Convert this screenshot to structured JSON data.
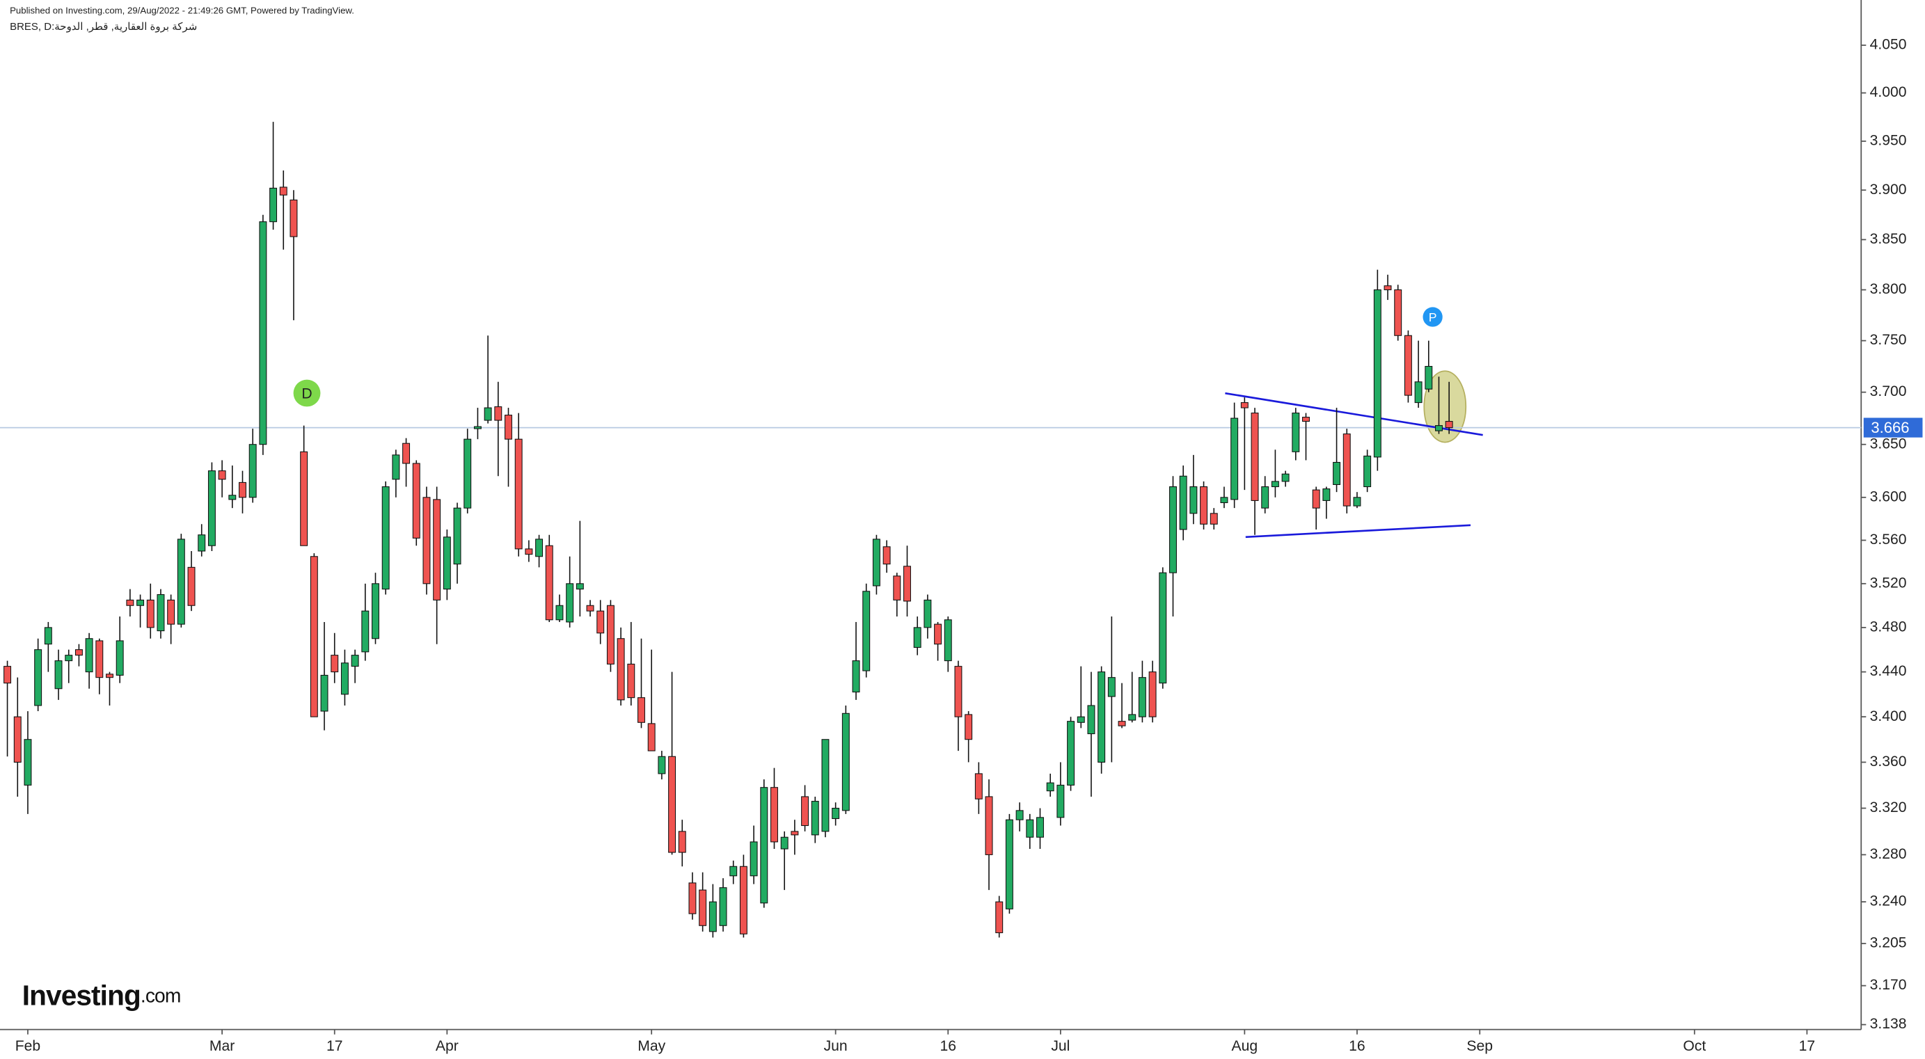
{
  "chart_data": {
    "type": "candlestick",
    "published": "Published on Investing.com, 29/Aug/2022 - 21:49:26 GMT, Powered by TradingView.",
    "symbol": "شركة بروة العقارية, قطر, الدوحة:BRES, D",
    "logo": {
      "brand": "Investing",
      "suffix": ".com"
    },
    "markers": [
      {
        "text": "D",
        "color": "#7ed84a"
      },
      {
        "text": "P",
        "color": "#2196f3"
      }
    ],
    "up_color": "#22ab62",
    "down_color": "#ef5350",
    "line_color": "#1a1adb",
    "price_line_color": "#b7c9e2",
    "price_label_color": "#2f6bd8",
    "log_y": true,
    "xlim": [
      -0.72,
      181.3
    ],
    "ylim": [
      3.134,
      4.098
    ],
    "yticks": [
      {
        "value": 4.05,
        "label": "4.050"
      },
      {
        "value": 4.0,
        "label": "4.000"
      },
      {
        "value": 3.95,
        "label": "3.950"
      },
      {
        "value": 3.9,
        "label": "3.900"
      },
      {
        "value": 3.85,
        "label": "3.850"
      },
      {
        "value": 3.8,
        "label": "3.800"
      },
      {
        "value": 3.75,
        "label": "3.750"
      },
      {
        "value": 3.7,
        "label": "3.700"
      },
      {
        "value": 3.65,
        "label": "3.650"
      },
      {
        "value": 3.6,
        "label": "3.600"
      },
      {
        "value": 3.56,
        "label": "3.560"
      },
      {
        "value": 3.52,
        "label": "3.520"
      },
      {
        "value": 3.48,
        "label": "3.480"
      },
      {
        "value": 3.44,
        "label": "3.440"
      },
      {
        "value": 3.4,
        "label": "3.400"
      },
      {
        "value": 3.36,
        "label": "3.360"
      },
      {
        "value": 3.32,
        "label": "3.320"
      },
      {
        "value": 3.28,
        "label": "3.280"
      },
      {
        "value": 3.24,
        "label": "3.240"
      },
      3.205,
      {
        "value": 3.17,
        "label": "3.170"
      },
      3.138
    ],
    "xticks": [
      {
        "value": 2,
        "label": "Feb"
      },
      {
        "value": 21,
        "label": "Mar"
      },
      {
        "value": 32,
        "label": "17"
      },
      {
        "value": 43,
        "label": "Apr"
      },
      {
        "value": 63,
        "label": "May"
      },
      {
        "value": 81,
        "label": "Jun"
      },
      {
        "value": 92,
        "label": "16"
      },
      {
        "value": 103,
        "label": "Jul"
      },
      {
        "value": 121,
        "label": "Aug"
      },
      {
        "value": 132,
        "label": "16"
      },
      {
        "value": 144,
        "label": "Sep"
      },
      {
        "value": 165,
        "label": "Oct"
      },
      {
        "value": 176,
        "label": "17"
      }
    ],
    "last_price": 3.666,
    "trendlines": [
      {
        "x": [
          119.1,
          144.3
        ],
        "y": [
          3.699,
          3.659
        ]
      },
      {
        "x": [
          121.1,
          143.1
        ],
        "y": [
          3.563,
          3.574
        ]
      }
    ],
    "open": [
      3.445,
      3.4,
      3.34,
      3.41,
      3.465,
      3.425,
      3.45,
      3.46,
      3.44,
      3.468,
      3.438,
      3.437,
      3.505,
      3.5,
      3.505,
      3.477,
      3.505,
      3.483,
      3.535,
      3.55,
      3.555,
      3.625,
      3.598,
      3.614,
      3.6,
      3.65,
      3.868,
      3.903,
      3.89,
      3.643,
      3.545,
      3.405,
      3.455,
      3.42,
      3.445,
      3.458,
      3.47,
      3.515,
      3.617,
      3.651,
      3.632,
      3.6,
      3.598,
      3.515,
      3.538,
      3.59,
      3.665,
      3.673,
      3.686,
      3.678,
      3.655,
      3.552,
      3.545,
      3.555,
      3.487,
      3.485,
      3.515,
      3.5,
      3.495,
      3.5,
      3.47,
      3.447,
      3.417,
      3.394,
      3.35,
      3.365,
      3.3,
      3.256,
      3.25,
      3.215,
      3.22,
      3.262,
      3.27,
      3.262,
      3.239,
      3.338,
      3.285,
      3.3,
      3.33,
      3.297,
      3.3,
      3.311,
      3.318,
      3.422,
      3.441,
      3.518,
      3.554,
      3.527,
      3.536,
      3.462,
      3.48,
      3.483,
      3.45,
      3.445,
      3.402,
      3.35,
      3.33,
      3.24,
      3.234,
      3.31,
      3.295,
      3.295,
      3.335,
      3.312,
      3.34,
      3.395,
      3.385,
      3.36,
      3.418,
      3.396,
      3.397,
      3.4,
      3.44,
      3.43,
      3.53,
      3.57,
      3.585,
      3.61,
      3.585,
      3.595,
      3.598,
      3.69,
      3.68,
      3.59,
      3.61,
      3.615,
      3.643,
      3.676,
      3.607,
      3.597,
      3.612,
      3.66,
      3.592,
      3.61,
      3.638,
      3.804,
      3.8,
      3.755,
      3.69,
      3.703,
      3.663,
      3.672
    ],
    "high": [
      3.45,
      3.435,
      3.405,
      3.47,
      3.485,
      3.46,
      3.46,
      3.465,
      3.475,
      3.47,
      3.44,
      3.49,
      3.515,
      3.51,
      3.52,
      3.515,
      3.51,
      3.566,
      3.55,
      3.575,
      3.633,
      3.635,
      3.63,
      3.625,
      3.665,
      3.875,
      3.97,
      3.92,
      3.9,
      3.668,
      3.548,
      3.485,
      3.475,
      3.46,
      3.46,
      3.52,
      3.53,
      3.615,
      3.645,
      3.656,
      3.635,
      3.61,
      3.61,
      3.57,
      3.595,
      3.665,
      3.685,
      3.755,
      3.71,
      3.685,
      3.68,
      3.56,
      3.565,
      3.565,
      3.51,
      3.545,
      3.578,
      3.505,
      3.505,
      3.505,
      3.48,
      3.485,
      3.47,
      3.46,
      3.37,
      3.44,
      3.31,
      3.265,
      3.265,
      3.255,
      3.26,
      3.275,
      3.28,
      3.305,
      3.345,
      3.355,
      3.3,
      3.31,
      3.34,
      3.33,
      3.38,
      3.325,
      3.41,
      3.485,
      3.52,
      3.565,
      3.56,
      3.53,
      3.555,
      3.49,
      3.51,
      3.485,
      3.49,
      3.45,
      3.405,
      3.36,
      3.345,
      3.245,
      3.315,
      3.325,
      3.315,
      3.32,
      3.35,
      3.36,
      3.4,
      3.445,
      3.44,
      3.445,
      3.49,
      3.43,
      3.44,
      3.45,
      3.45,
      3.535,
      3.62,
      3.63,
      3.64,
      3.615,
      3.59,
      3.61,
      3.69,
      3.695,
      3.685,
      3.62,
      3.645,
      3.625,
      3.685,
      3.68,
      3.61,
      3.61,
      3.685,
      3.665,
      3.605,
      3.645,
      3.82,
      3.815,
      3.805,
      3.76,
      3.75,
      3.75,
      3.715,
      3.71
    ],
    "low": [
      3.365,
      3.33,
      3.315,
      3.405,
      3.44,
      3.415,
      3.43,
      3.445,
      3.425,
      3.42,
      3.41,
      3.43,
      3.49,
      3.48,
      3.47,
      3.47,
      3.465,
      3.48,
      3.495,
      3.545,
      3.55,
      3.6,
      3.59,
      3.585,
      3.595,
      3.64,
      3.86,
      3.84,
      3.77,
      3.555,
      3.4,
      3.388,
      3.43,
      3.41,
      3.43,
      3.45,
      3.465,
      3.51,
      3.6,
      3.61,
      3.555,
      3.51,
      3.465,
      3.505,
      3.52,
      3.585,
      3.655,
      3.67,
      3.62,
      3.61,
      3.545,
      3.54,
      3.535,
      3.485,
      3.485,
      3.48,
      3.49,
      3.49,
      3.465,
      3.44,
      3.41,
      3.41,
      3.39,
      3.37,
      3.345,
      3.28,
      3.27,
      3.225,
      3.215,
      3.21,
      3.215,
      3.255,
      3.21,
      3.255,
      3.235,
      3.285,
      3.25,
      3.28,
      3.3,
      3.29,
      3.295,
      3.305,
      3.315,
      3.415,
      3.435,
      3.51,
      3.53,
      3.49,
      3.49,
      3.455,
      3.47,
      3.45,
      3.44,
      3.37,
      3.36,
      3.315,
      3.25,
      3.21,
      3.23,
      3.3,
      3.285,
      3.285,
      3.33,
      3.305,
      3.335,
      3.39,
      3.33,
      3.35,
      3.36,
      3.39,
      3.395,
      3.395,
      3.395,
      3.425,
      3.49,
      3.56,
      3.575,
      3.57,
      3.57,
      3.59,
      3.59,
      3.607,
      3.565,
      3.585,
      3.6,
      3.61,
      3.635,
      3.635,
      3.57,
      3.58,
      3.605,
      3.585,
      3.59,
      3.605,
      3.625,
      3.79,
      3.75,
      3.69,
      3.685,
      3.7,
      3.66,
      3.66
    ],
    "close": [
      3.43,
      3.36,
      3.38,
      3.46,
      3.48,
      3.45,
      3.455,
      3.455,
      3.47,
      3.435,
      3.435,
      3.468,
      3.5,
      3.505,
      3.48,
      3.51,
      3.483,
      3.561,
      3.5,
      3.565,
      3.625,
      3.617,
      3.602,
      3.6,
      3.65,
      3.868,
      3.902,
      3.895,
      3.853,
      3.555,
      3.4,
      3.437,
      3.44,
      3.448,
      3.455,
      3.495,
      3.52,
      3.61,
      3.64,
      3.632,
      3.562,
      3.52,
      3.505,
      3.563,
      3.59,
      3.655,
      3.667,
      3.685,
      3.673,
      3.655,
      3.552,
      3.547,
      3.561,
      3.487,
      3.5,
      3.52,
      3.52,
      3.495,
      3.475,
      3.447,
      3.415,
      3.417,
      3.395,
      3.37,
      3.365,
      3.282,
      3.282,
      3.23,
      3.22,
      3.24,
      3.252,
      3.27,
      3.213,
      3.291,
      3.338,
      3.291,
      3.295,
      3.297,
      3.305,
      3.326,
      3.38,
      3.32,
      3.403,
      3.45,
      3.513,
      3.561,
      3.538,
      3.505,
      3.504,
      3.48,
      3.505,
      3.465,
      3.487,
      3.4,
      3.38,
      3.328,
      3.28,
      3.214,
      3.31,
      3.318,
      3.31,
      3.312,
      3.342,
      3.34,
      3.396,
      3.4,
      3.41,
      3.44,
      3.435,
      3.392,
      3.402,
      3.435,
      3.4,
      3.53,
      3.61,
      3.62,
      3.61,
      3.575,
      3.575,
      3.6,
      3.675,
      3.685,
      3.597,
      3.61,
      3.615,
      3.622,
      3.68,
      3.672,
      3.59,
      3.608,
      3.633,
      3.592,
      3.6,
      3.639,
      3.8,
      3.8,
      3.755,
      3.697,
      3.71,
      3.725,
      3.668,
      3.666
    ]
  }
}
